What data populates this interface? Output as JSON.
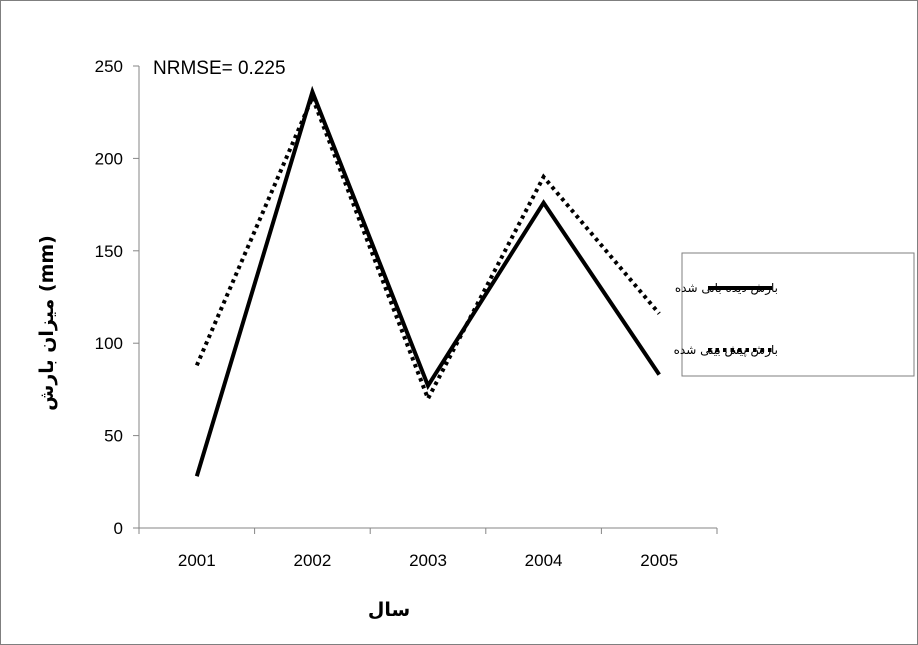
{
  "chart_data": {
    "type": "line",
    "categories": [
      "2001",
      "2002",
      "2003",
      "2004",
      "2005"
    ],
    "series": [
      {
        "name": "بارش دیده بانی شده",
        "values": [
          28,
          236,
          77,
          176,
          83
        ],
        "style": "solid",
        "color": "#000000"
      },
      {
        "name": "بارش پیش بینی شده",
        "values": [
          88,
          233,
          70,
          190,
          116
        ],
        "style": "dotted",
        "color": "#000000"
      }
    ],
    "xlabel": "سال",
    "ylabel": "میزان بارش (mm)",
    "ylim": [
      0,
      250
    ],
    "yticks": [
      "0",
      "50",
      "100",
      "150",
      "200",
      "250"
    ],
    "annotation": "NRMSE= 0.225",
    "legend_position": "right",
    "grid": false
  }
}
